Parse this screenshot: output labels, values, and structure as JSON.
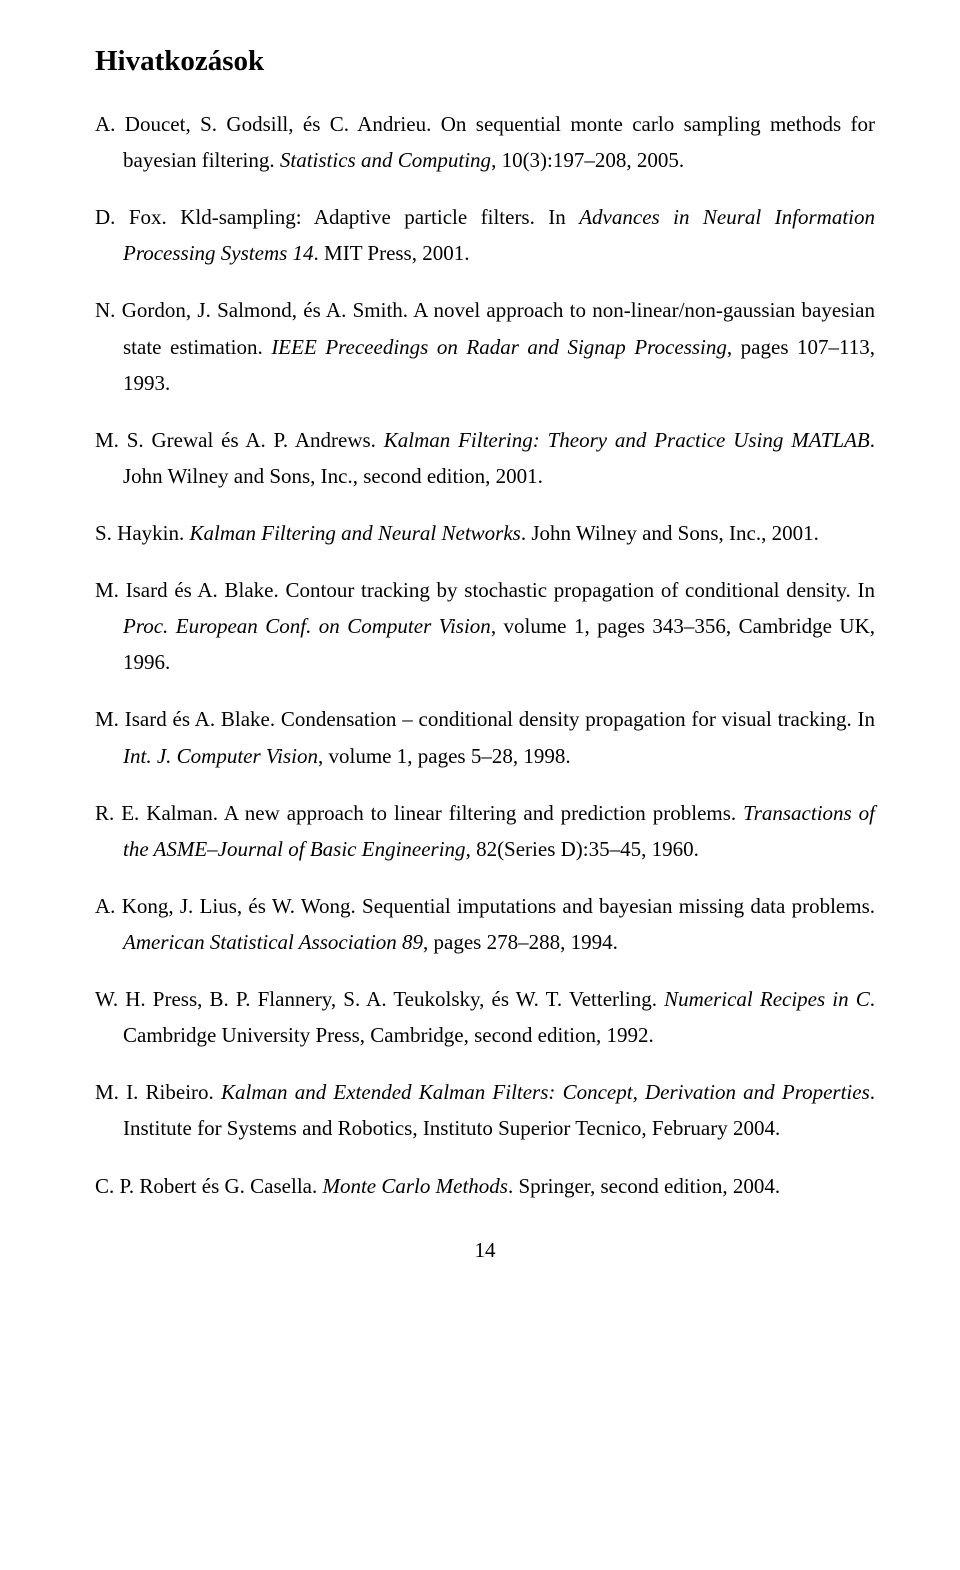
{
  "section_title": "Hivatkozások",
  "page_number": "14",
  "references": [
    {
      "authors": "A. Doucet, S. Godsill, és C. Andrieu.",
      "title_plain": "On sequential monte carlo sampling methods for bayesian filtering.",
      "source_italic": "Statistics and Computing",
      "trailing": ", 10(3):197–208, 2005."
    },
    {
      "authors": "D. Fox.",
      "title_plain": "Kld-sampling: Adaptive particle filters. In ",
      "source_italic": "Advances in Neural Information Processing Systems 14",
      "trailing": ". MIT Press, 2001."
    },
    {
      "authors": "N. Gordon, J. Salmond, és A. Smith.",
      "title_plain": "A novel approach to non-linear/non-gaussian bayesian state estimation.",
      "source_italic": "IEEE Preceedings on Radar and Signap Processing",
      "trailing": ", pages 107–113, 1993."
    },
    {
      "authors": "M. S. Grewal és A. P. Andrews.",
      "title_plain": "",
      "source_italic": "Kalman Filtering: Theory and Practice Using MATLAB",
      "trailing": ". John Wilney and Sons, Inc., second edition, 2001."
    },
    {
      "authors": "S. Haykin.",
      "title_plain": "",
      "source_italic": "Kalman Filtering and Neural Networks",
      "trailing": ". John Wilney and Sons, Inc., 2001."
    },
    {
      "authors": "M. Isard és A. Blake.",
      "title_plain": "Contour tracking by stochastic propagation of conditional density. In ",
      "source_italic": "Proc. European Conf. on Computer Vision",
      "trailing": ", volume 1, pages 343–356, Cambridge UK, 1996."
    },
    {
      "authors": "M. Isard és A. Blake.",
      "title_plain": "Condensation – conditional density propagation for visual tracking. In ",
      "source_italic": "Int. J. Computer Vision",
      "trailing": ", volume 1, pages 5–28, 1998."
    },
    {
      "authors": "R. E. Kalman.",
      "title_plain": "A new approach to linear filtering and prediction problems.",
      "source_italic": "Transactions of the ASME–Journal of Basic Engineering",
      "trailing": ", 82(Series D):35–45, 1960."
    },
    {
      "authors": "A. Kong, J. Lius, és W. Wong.",
      "title_plain": "Sequential imputations and bayesian missing data problems.",
      "source_italic": "American Statistical Association 89",
      "trailing": ", pages 278–288, 1994."
    },
    {
      "authors": "W. H. Press, B. P. Flannery, S. A. Teukolsky, és W. T. Vetterling.",
      "title_plain": "",
      "source_italic": "Numerical Recipes in C",
      "trailing": ". Cambridge University Press, Cambridge, second edition, 1992."
    },
    {
      "authors": "M. I. Ribeiro.",
      "title_plain": "",
      "source_italic": "Kalman and Extended Kalman Filters: Concept, Derivation and Properties",
      "trailing": ". Institute for Systems and Robotics, Instituto Superior Tecnico, February 2004."
    },
    {
      "authors": "C. P. Robert és G. Casella.",
      "title_plain": "",
      "source_italic": "Monte Carlo Methods",
      "trailing": ". Springer, second edition, 2004."
    }
  ]
}
